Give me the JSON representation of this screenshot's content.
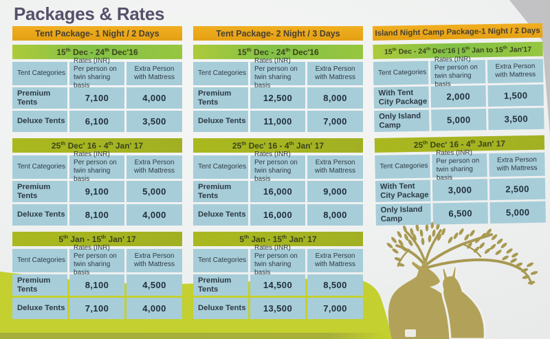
{
  "page": {
    "title": "Packages & Rates"
  },
  "table_headers": {
    "categories": "Tent Categories",
    "rates": "Rates (INR)\nPer person on\ntwin sharing basis",
    "extra": "Extra Person\nwith Mattress"
  },
  "colors": {
    "accent_yellow": "#e9a81a",
    "green_bright": "#8cc342",
    "green_olive": "#a8b621",
    "cell_blue": "#a7cdd9",
    "wave_chartreuse": "#c3d02f",
    "illustration_olive": "#a89951",
    "title_text": "#56506b"
  },
  "columns": [
    {
      "title": "Tent Package- 1 Night / 2 Days",
      "sections": [
        {
          "date": "15th Dec - 24th Dec'16",
          "rows": [
            [
              "Premium Tents",
              "7,100",
              "4,000"
            ],
            [
              "Deluxe Tents",
              "6,100",
              "3,500"
            ]
          ]
        },
        {
          "date": "25th Dec' 16 - 4th Jan' 17",
          "rows": [
            [
              "Premium Tents",
              "9,100",
              "5,000"
            ],
            [
              "Deluxe Tents",
              "8,100",
              "4,000"
            ]
          ]
        },
        {
          "date": "5th Jan - 15th Jan' 17",
          "rows": [
            [
              "Premium Tents",
              "8,100",
              "4,500"
            ],
            [
              "Deluxe Tents",
              "7,100",
              "4,000"
            ]
          ]
        }
      ]
    },
    {
      "title": "Tent Package- 2 Night / 3 Days",
      "sections": [
        {
          "date": "15th Dec - 24th Dec'16",
          "rows": [
            [
              "Premium Tents",
              "12,500",
              "8,000"
            ],
            [
              "Deluxe Tents",
              "11,000",
              "7,000"
            ]
          ]
        },
        {
          "date": "25th Dec' 16 - 4th Jan' 17",
          "rows": [
            [
              "Premium Tents",
              "16,000",
              "9,000"
            ],
            [
              "Deluxe Tents",
              "16,000",
              "8,000"
            ]
          ]
        },
        {
          "date": "5th Jan - 15th Jan' 17",
          "rows": [
            [
              "Premium Tents",
              "14,500",
              "8,500"
            ],
            [
              "Deluxe Tents",
              "13,500",
              "7,000"
            ]
          ]
        }
      ]
    },
    {
      "title": "Island Night Camp Package-1 Night / 2 Days",
      "sections": [
        {
          "date": "15th Dec - 24th Dec'16  |  5th Jan to 15th Jan'17",
          "rows": [
            [
              "With Tent City Package",
              "2,000",
              "1,500"
            ],
            [
              "Only Island Camp",
              "5,000",
              "3,500"
            ]
          ]
        },
        {
          "date": "25th Dec' 16 - 4th Jan' 17",
          "rows": [
            [
              "With Tent City Package",
              "3,000",
              "2,500"
            ],
            [
              "Only Island Camp",
              "6,500",
              "5,000"
            ]
          ]
        }
      ]
    }
  ]
}
